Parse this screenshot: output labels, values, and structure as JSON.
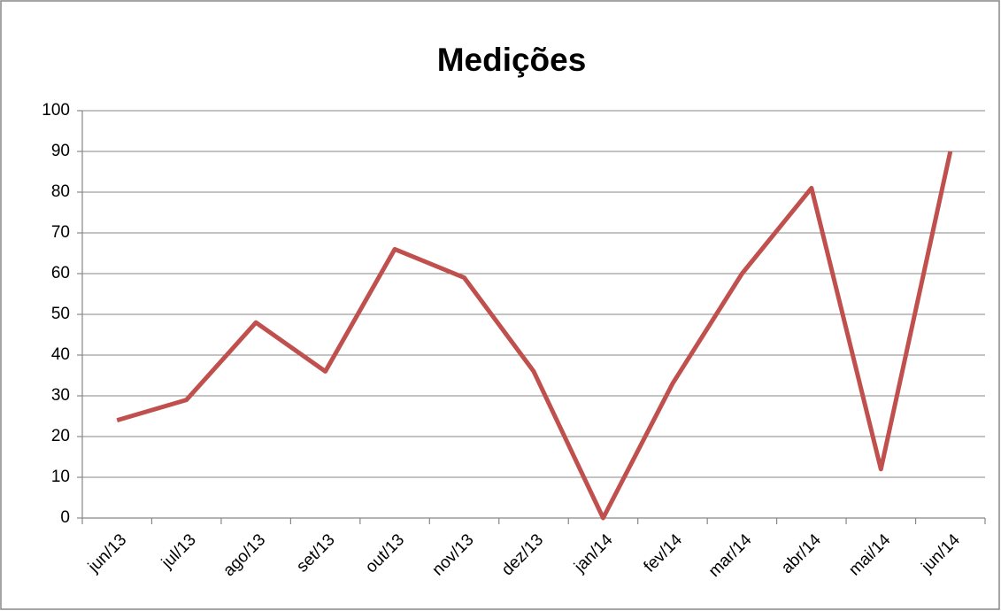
{
  "chart_data": {
    "type": "line",
    "title": "Medições",
    "categories": [
      "jun/13",
      "jul/13",
      "ago/13",
      "set/13",
      "out/13",
      "nov/13",
      "dez/13",
      "jan/14",
      "fev/14",
      "mar/14",
      "abr/14",
      "mai/14",
      "jun/14"
    ],
    "values": [
      24,
      29,
      48,
      36,
      66,
      59,
      36,
      0,
      33,
      60,
      81,
      12,
      90
    ],
    "color": "#c0504d",
    "ylim": [
      0,
      100
    ],
    "yticks": [
      0,
      10,
      20,
      30,
      40,
      50,
      60,
      70,
      80,
      90,
      100
    ],
    "grid": true
  }
}
